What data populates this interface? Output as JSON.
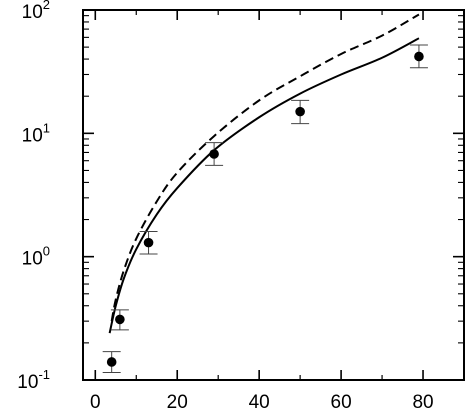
{
  "chart_data": {
    "type": "scatter",
    "title": "",
    "xlabel": "",
    "ylabel": "",
    "x_scale": "linear",
    "y_scale": "log",
    "xlim": [
      -3,
      90
    ],
    "ylim": [
      0.1,
      100
    ],
    "x_ticks": [
      0,
      20,
      40,
      60,
      80
    ],
    "x_tick_labels": [
      "0",
      "20",
      "40",
      "60",
      "80"
    ],
    "y_ticks": [
      {
        "value": 0.1,
        "base": "10",
        "exponent": "-1"
      },
      {
        "value": 1,
        "base": "10",
        "exponent": "0"
      },
      {
        "value": 10,
        "base": "10",
        "exponent": "1"
      },
      {
        "value": 100,
        "base": "10",
        "exponent": "2"
      }
    ],
    "grid": false,
    "series": [
      {
        "kind": "points-with-error-bars",
        "marker": "filled-circle",
        "points": [
          {
            "x": 4.0,
            "y": 0.14,
            "y_low": 0.115,
            "y_high": 0.17
          },
          {
            "x": 6.0,
            "y": 0.31,
            "y_low": 0.255,
            "y_high": 0.37
          },
          {
            "x": 13.0,
            "y": 1.3,
            "y_low": 1.05,
            "y_high": 1.6
          },
          {
            "x": 29.0,
            "y": 6.8,
            "y_low": 5.5,
            "y_high": 8.4
          },
          {
            "x": 50.0,
            "y": 15.0,
            "y_low": 12.0,
            "y_high": 18.5
          },
          {
            "x": 79.0,
            "y": 42.0,
            "y_low": 34.0,
            "y_high": 52.0
          }
        ]
      },
      {
        "kind": "line",
        "style": "solid",
        "x": [
          3.5,
          5,
          7,
          10,
          15,
          20,
          29,
          40,
          50,
          60,
          70,
          79
        ],
        "y": [
          0.24,
          0.4,
          0.67,
          1.15,
          2.2,
          3.6,
          7.3,
          13.5,
          21,
          30,
          41,
          59
        ]
      },
      {
        "kind": "line",
        "style": "dashed",
        "x": [
          4,
          5,
          7,
          10,
          15,
          20,
          29,
          40,
          50,
          60,
          70,
          79
        ],
        "y": [
          0.3,
          0.45,
          0.78,
          1.4,
          2.8,
          4.8,
          9.5,
          18.5,
          29,
          44,
          62,
          92
        ]
      }
    ]
  }
}
